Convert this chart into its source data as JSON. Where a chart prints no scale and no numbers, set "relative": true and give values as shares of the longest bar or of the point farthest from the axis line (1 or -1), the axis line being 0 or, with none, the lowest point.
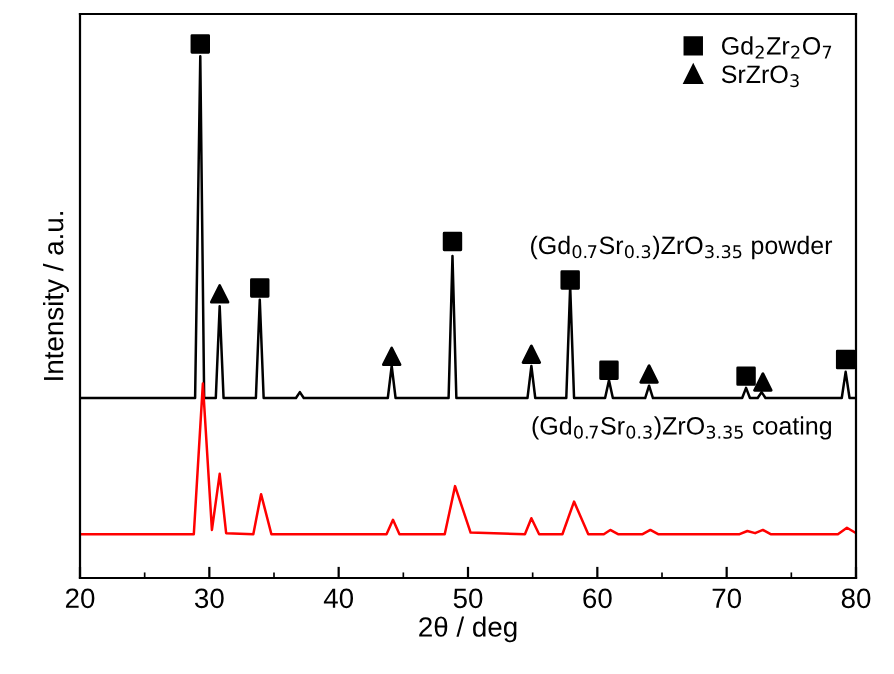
{
  "chart_data": {
    "type": "line",
    "relative": true,
    "xlabel": "2θ / deg",
    "ylabel": "Intensity / a.u.",
    "xlim": [
      20,
      80
    ],
    "xticks": [
      20,
      {
        "value": 25,
        "label": null
      },
      30,
      {
        "value": 35,
        "label": null
      },
      40,
      {
        "value": 45,
        "label": null
      },
      50,
      {
        "value": 55,
        "label": null
      },
      60,
      {
        "value": 65,
        "label": null
      },
      70,
      {
        "value": 75,
        "label": null
      },
      80
    ],
    "grid": false,
    "legend": "top right",
    "line_style": "solid",
    "annotations": [
      "(Gd$_{0.7}$Sr$_{0.3}$)ZrO$_{3.35}$ powder",
      "(Gd$_{0.7}$Sr$_{0.3}$)ZrO$_{3.35}$ coating"
    ],
    "series": [
      {
        "marker": "none",
        "color": "#000000",
        "x": [
          20,
          28.9,
          29.3,
          29.6,
          30.5,
          30.8,
          31.1,
          33.6,
          33.9,
          34.2,
          36.7,
          37.0,
          37.3,
          43.8,
          44.1,
          44.4,
          48.5,
          48.8,
          49.1,
          54.6,
          54.9,
          55.2,
          57.6,
          57.9,
          58.2,
          60.6,
          60.9,
          61.2,
          63.7,
          64.0,
          64.3,
          71.2,
          71.5,
          71.8,
          72.4,
          72.7,
          73.0,
          78.9,
          79.2,
          79.5,
          80
        ],
        "values": [
          0.337,
          0.337,
          0.977,
          0.337,
          0.337,
          0.509,
          0.337,
          0.337,
          0.521,
          0.337,
          0.337,
          0.348,
          0.337,
          0.337,
          0.397,
          0.337,
          0.337,
          0.603,
          0.337,
          0.337,
          0.397,
          0.337,
          0.337,
          0.546,
          0.337,
          0.337,
          0.37,
          0.337,
          0.337,
          0.36,
          0.337,
          0.337,
          0.356,
          0.337,
          0.337,
          0.348,
          0.337,
          0.337,
          0.386,
          0.337,
          0.337
        ]
      },
      {
        "marker": "none",
        "color": "#ff0000",
        "x": [
          20,
          28.8,
          29.5,
          30.2,
          30.8,
          31.3,
          33.4,
          34.0,
          34.8,
          43.7,
          44.2,
          44.7,
          48.2,
          49.0,
          50.2,
          54.4,
          54.9,
          55.5,
          57.3,
          58.2,
          59.3,
          60.5,
          61.0,
          61.6,
          63.5,
          64.1,
          64.7,
          71.0,
          71.6,
          72.2,
          72.8,
          73.4,
          78.6,
          79.3,
          80
        ],
        "values": [
          0.082,
          0.082,
          0.364,
          0.09,
          0.195,
          0.084,
          0.082,
          0.157,
          0.082,
          0.082,
          0.109,
          0.082,
          0.082,
          0.172,
          0.085,
          0.082,
          0.112,
          0.082,
          0.082,
          0.143,
          0.082,
          0.082,
          0.09,
          0.082,
          0.082,
          0.09,
          0.082,
          0.082,
          0.088,
          0.084,
          0.09,
          0.082,
          0.082,
          0.094,
          0.084
        ]
      },
      {
        "name": "Gd$_{2}$Zr$_{2}$O$_{7}$",
        "type": "scatter",
        "marker": "square",
        "color": "#000000",
        "x": [
          29.3,
          33.9,
          48.8,
          57.9,
          60.9,
          71.5,
          79.2
        ],
        "values": [
          1.0,
          0.543,
          0.63,
          0.558,
          0.389,
          0.378,
          0.409
        ]
      },
      {
        "name": "SrZrO$_{3}$",
        "type": "scatter",
        "marker": "triangle",
        "color": "#000000",
        "x": [
          30.8,
          44.1,
          54.9,
          64.0,
          72.8
        ],
        "values": [
          0.532,
          0.415,
          0.419,
          0.382,
          0.367
        ]
      }
    ]
  }
}
